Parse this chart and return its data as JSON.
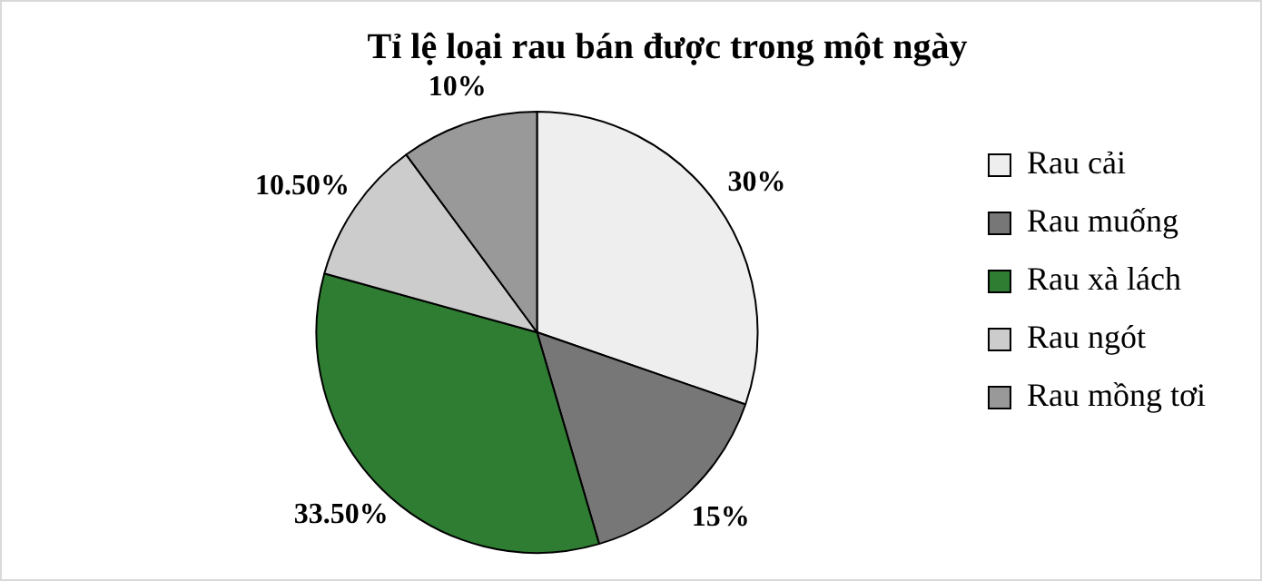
{
  "chart_data": {
    "type": "pie",
    "title": "Tỉ lệ loại rau bán được trong một ngày",
    "categories": [
      "Rau cải",
      "Rau muống",
      "Rau xà lách",
      "Rau ngót",
      "Rau mồng tơi"
    ],
    "values": [
      30,
      15,
      33.5,
      10.5,
      10
    ],
    "value_labels": [
      "30%",
      "15%",
      "33.50%",
      "10.50%",
      "10%"
    ],
    "colors": [
      "#eeeeee",
      "#777777",
      "#2e7d32",
      "#cccccc",
      "#999999"
    ],
    "legend": "right"
  }
}
